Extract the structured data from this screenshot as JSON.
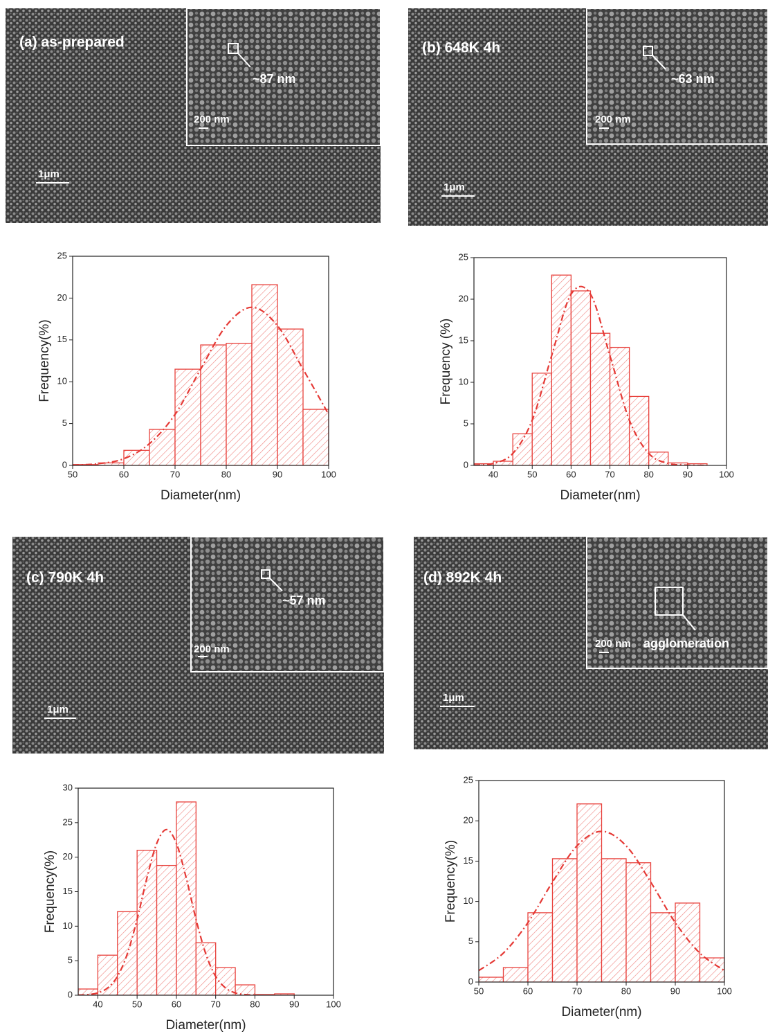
{
  "panels": [
    {
      "label": "(a) as-prepared",
      "inset_label": "~87 nm",
      "inset_scale": "200 nm",
      "scale": "1μm"
    },
    {
      "label": "(b) 648K 4h",
      "inset_label": "~63 nm",
      "inset_scale": "200 nm",
      "scale": "1μm"
    },
    {
      "label": "(c) 790K 4h",
      "inset_label": "~57 nm",
      "inset_scale": "200 nm",
      "scale": "1μm"
    },
    {
      "label": "(d) 892K 4h",
      "inset_label": "agglomeration",
      "inset_scale": "200 nm",
      "scale": "1μm"
    }
  ],
  "chart_data": [
    {
      "type": "histogram",
      "xlabel": "Diameter(nm)",
      "ylabel": "Frequency(%)",
      "color": "#e8413c",
      "bins": [
        50,
        55,
        60,
        65,
        70,
        75,
        80,
        85,
        90,
        95,
        100
      ],
      "counts": [
        0.1,
        0.3,
        1.8,
        4.3,
        11.5,
        14.4,
        14.6,
        21.6,
        16.3,
        6.7
      ],
      "fit": {
        "color": "#e53935",
        "x": [
          50,
          55,
          60,
          65,
          70,
          75,
          80,
          85,
          90,
          95,
          100
        ],
        "values": [
          0.04,
          0.2,
          0.8,
          2.6,
          6.1,
          11.5,
          16.7,
          18.9,
          16.7,
          11.5,
          6.1
        ]
      },
      "xlim": [
        50,
        100
      ],
      "xticks": [
        50,
        60,
        70,
        80,
        90,
        100
      ],
      "ylim": [
        0,
        25
      ],
      "yticks": [
        0,
        5,
        10,
        15,
        20,
        25
      ]
    },
    {
      "type": "histogram",
      "xlabel": "Diameter(nm)",
      "ylabel": "Frequency (%)",
      "color": "#e8413c",
      "bins": [
        35,
        40,
        45,
        50,
        55,
        60,
        65,
        70,
        75,
        80,
        85,
        90,
        95
      ],
      "counts": [
        0.2,
        0.5,
        3.8,
        11.1,
        22.9,
        21.0,
        15.9,
        14.2,
        8.3,
        1.6,
        0.3,
        0.2
      ],
      "fit": {
        "color": "#e53935",
        "x": [
          35,
          40,
          45,
          50,
          55,
          60,
          65,
          70,
          75,
          80,
          85,
          90,
          95
        ],
        "values": [
          0.03,
          0.24,
          1.44,
          5.45,
          13.2,
          20.6,
          20.6,
          13.2,
          5.45,
          1.44,
          0.24,
          0.03,
          0.002
        ]
      },
      "xlim": [
        35,
        100
      ],
      "xticks": [
        40,
        50,
        60,
        70,
        80,
        90,
        100
      ],
      "ylim": [
        0,
        25
      ],
      "yticks": [
        0,
        5,
        10,
        15,
        20,
        25
      ]
    },
    {
      "type": "histogram",
      "xlabel": "Diameter(nm)",
      "ylabel": "Frequency(%)",
      "color": "#e8413c",
      "bins": [
        35,
        40,
        45,
        50,
        55,
        60,
        65,
        70,
        75,
        80,
        85,
        90
      ],
      "counts": [
        0.9,
        5.8,
        12.1,
        21.0,
        18.8,
        28.0,
        7.6,
        4.0,
        1.5,
        0.1,
        0.2
      ],
      "fit": {
        "color": "#e53935",
        "x": [
          35,
          37.5,
          40,
          42.5,
          45,
          47.5,
          50,
          52.5,
          55,
          57.5,
          60,
          62.5,
          65,
          67.5,
          70,
          72.5,
          75,
          77.5,
          80,
          82.5
        ],
        "values": [
          0.02,
          0.09,
          0.34,
          1.06,
          2.73,
          5.98,
          11.0,
          17.0,
          22.0,
          24,
          22.0,
          17.0,
          11.0,
          5.98,
          2.73,
          1.06,
          0.34,
          0.09,
          0.02,
          0.003
        ]
      },
      "xlim": [
        35,
        100
      ],
      "xticks": [
        40,
        50,
        60,
        70,
        80,
        90,
        100
      ],
      "ylim": [
        0,
        30
      ],
      "yticks": [
        0,
        5,
        10,
        15,
        20,
        25,
        30
      ]
    },
    {
      "type": "histogram",
      "xlabel": "Diameter(nm)",
      "ylabel": "Frequency(%)",
      "color": "#e8413c",
      "bins": [
        50,
        55,
        60,
        65,
        70,
        75,
        80,
        85,
        90,
        95,
        100
      ],
      "counts": [
        0.6,
        1.8,
        8.6,
        15.3,
        22.1,
        15.3,
        14.8,
        8.6,
        9.8,
        3.0
      ],
      "fit": {
        "color": "#e53935",
        "x": [
          50,
          55,
          60,
          65,
          70,
          75,
          80,
          85,
          90,
          95,
          100
        ],
        "values": [
          1.42,
          3.59,
          7.37,
          12.4,
          16.9,
          18.7,
          16.9,
          12.4,
          7.37,
          3.59,
          1.42
        ]
      },
      "xlim": [
        50,
        100
      ],
      "xticks": [
        50,
        60,
        70,
        80,
        90,
        100
      ],
      "ylim": [
        0,
        25
      ],
      "yticks": [
        0,
        5,
        10,
        15,
        20,
        25
      ]
    }
  ]
}
